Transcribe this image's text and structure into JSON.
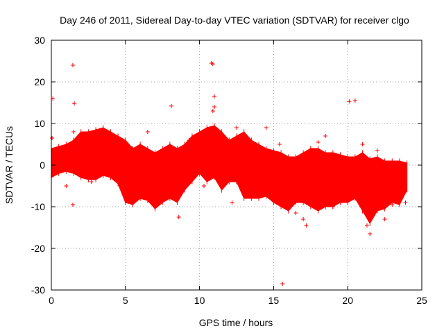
{
  "chart_data": {
    "type": "scatter",
    "title": "Day 246 of 2011, Sidereal Day-to-day VTEC variation (SDTVAR) for receiver clgo",
    "xlabel": "GPS time / hours",
    "ylabel": "SDTVAR / TECUs",
    "xlim": [
      0,
      25
    ],
    "ylim": [
      -30,
      30
    ],
    "xticks": [
      0,
      5,
      10,
      15,
      20,
      25
    ],
    "yticks": [
      -30,
      -20,
      -10,
      0,
      10,
      20,
      30
    ],
    "xtick_labels": [
      "0",
      "5",
      "10",
      "15",
      "20",
      "25"
    ],
    "ytick_labels": [
      "-30",
      "-20",
      "-10",
      "0",
      "10",
      "20",
      "30"
    ],
    "grid": true,
    "marker": "+",
    "color": "#ff0000",
    "series": [
      {
        "name": "SDTVAR",
        "envelope": {
          "x": [
            0.0,
            0.5,
            1.0,
            1.5,
            2.0,
            2.5,
            3.0,
            3.5,
            4.0,
            4.5,
            5.0,
            5.5,
            6.0,
            6.5,
            7.0,
            7.5,
            8.0,
            8.5,
            9.0,
            9.5,
            10.0,
            10.5,
            11.0,
            11.5,
            12.0,
            12.5,
            13.0,
            13.5,
            14.0,
            14.5,
            15.0,
            15.5,
            16.0,
            16.5,
            17.0,
            17.5,
            18.0,
            18.5,
            19.0,
            19.5,
            20.0,
            20.5,
            21.0,
            21.5,
            22.0,
            22.5,
            23.0,
            23.5,
            24.0
          ],
          "upper": [
            4.0,
            4.5,
            5.0,
            6.0,
            8.0,
            8.0,
            8.5,
            9.0,
            8.0,
            7.0,
            6.0,
            4.0,
            5.0,
            4.0,
            3.0,
            4.0,
            5.0,
            4.0,
            5.0,
            7.0,
            8.0,
            9.0,
            9.5,
            8.0,
            6.0,
            7.0,
            8.0,
            6.0,
            5.0,
            4.0,
            3.5,
            3.0,
            2.0,
            2.0,
            3.0,
            4.0,
            4.0,
            3.0,
            3.0,
            2.5,
            2.0,
            2.0,
            3.0,
            1.5,
            2.0,
            1.0,
            1.0,
            1.0,
            0.5
          ],
          "lower": [
            -3.0,
            -2.0,
            -1.5,
            -2.0,
            -3.0,
            -3.5,
            -3.5,
            -2.5,
            -3.0,
            -4.5,
            -9.0,
            -9.5,
            -8.0,
            -8.5,
            -10.5,
            -9.0,
            -8.0,
            -9.0,
            -6.0,
            -4.0,
            -2.0,
            -4.0,
            -3.0,
            -6.0,
            -4.0,
            -4.0,
            -8.0,
            -8.0,
            -8.0,
            -7.5,
            -9.0,
            -10.0,
            -11.0,
            -9.0,
            -9.0,
            -10.0,
            -11.0,
            -10.0,
            -10.0,
            -9.0,
            -9.0,
            -8.0,
            -11.0,
            -14.0,
            -11.0,
            -10.5,
            -9.0,
            -9.5,
            -6.0
          ]
        },
        "points": [
          [
            0.1,
            16.0
          ],
          [
            0.05,
            6.5
          ],
          [
            0.2,
            3.2
          ],
          [
            1.0,
            -5.0
          ],
          [
            1.45,
            24.0
          ],
          [
            1.45,
            -9.5
          ],
          [
            1.55,
            14.8
          ],
          [
            1.5,
            8.0
          ],
          [
            2.7,
            -4.0
          ],
          [
            5.8,
            -7.5
          ],
          [
            6.5,
            8.0
          ],
          [
            8.1,
            14.2
          ],
          [
            8.6,
            -12.5
          ],
          [
            9.3,
            6.0
          ],
          [
            10.3,
            -5.0
          ],
          [
            10.8,
            24.5
          ],
          [
            10.9,
            24.3
          ],
          [
            11.0,
            16.5
          ],
          [
            11.0,
            14.0
          ],
          [
            10.9,
            13.0
          ],
          [
            12.2,
            -9.0
          ],
          [
            12.5,
            9.0
          ],
          [
            13.8,
            -6.5
          ],
          [
            14.5,
            9.0
          ],
          [
            15.6,
            -28.5
          ],
          [
            15.4,
            5.0
          ],
          [
            16.5,
            -11.5
          ],
          [
            17.0,
            -13.0
          ],
          [
            17.2,
            -14.5
          ],
          [
            18.0,
            5.5
          ],
          [
            18.5,
            7.0
          ],
          [
            19.0,
            -10.0
          ],
          [
            20.1,
            15.3
          ],
          [
            20.5,
            15.5
          ],
          [
            21.0,
            5.0
          ],
          [
            21.3,
            -14.5
          ],
          [
            21.5,
            -16.5
          ],
          [
            22.0,
            3.5
          ],
          [
            22.5,
            -13.0
          ],
          [
            23.0,
            -9.5
          ],
          [
            23.9,
            -9.0
          ],
          [
            23.8,
            -6.5
          ]
        ]
      }
    ]
  }
}
